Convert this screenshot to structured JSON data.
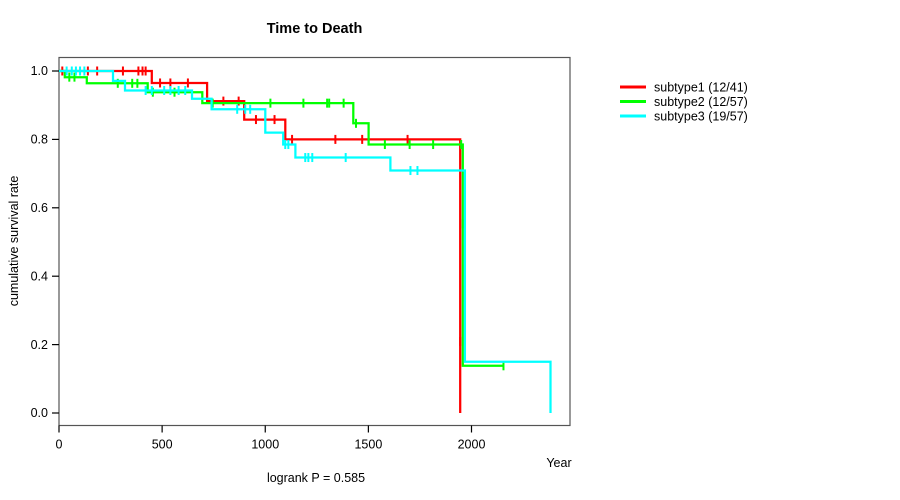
{
  "chart_data": {
    "type": "line",
    "subtype": "kaplan-meier-step-survival",
    "title": "Time to Death",
    "xlabel": "Year",
    "ylabel": "cumulative survival rate",
    "annotation": "logrank P = 0.585",
    "xlim": [
      0,
      2400
    ],
    "ylim": [
      0.0,
      1.0
    ],
    "grid": false,
    "legend_position": "right-outside",
    "xticks": [
      {
        "label": "0",
        "value": 0
      },
      {
        "label": "500",
        "value": 500
      },
      {
        "label": "1000",
        "value": 1000
      },
      {
        "label": "1500",
        "value": 1500
      },
      {
        "label": "2000",
        "value": 2000
      }
    ],
    "yticks": [
      {
        "label": "0.0",
        "value": 0.0
      },
      {
        "label": "0.2",
        "value": 0.2
      },
      {
        "label": "0.4",
        "value": 0.4
      },
      {
        "label": "0.6",
        "value": 0.6
      },
      {
        "label": "0.8",
        "value": 0.8
      },
      {
        "label": "1.0",
        "value": 1.0
      }
    ],
    "series": [
      {
        "name": "subtype1 (12/41)",
        "color": "#ff0000",
        "steps": [
          [
            0,
            1.0
          ],
          [
            450,
            0.965
          ],
          [
            718,
            0.912
          ],
          [
            898,
            0.858
          ],
          [
            1097,
            0.8
          ],
          [
            1945,
            0.0
          ]
        ],
        "end": 1945,
        "censors": [
          [
            16,
            1.0
          ],
          [
            140,
            1.0
          ],
          [
            185,
            1.0
          ],
          [
            310,
            1.0
          ],
          [
            385,
            1.0
          ],
          [
            405,
            1.0
          ],
          [
            420,
            1.0
          ],
          [
            490,
            0.965
          ],
          [
            540,
            0.965
          ],
          [
            625,
            0.965
          ],
          [
            797,
            0.912
          ],
          [
            871,
            0.912
          ],
          [
            955,
            0.858
          ],
          [
            1045,
            0.858
          ],
          [
            1130,
            0.8
          ],
          [
            1340,
            0.8
          ],
          [
            1470,
            0.8
          ],
          [
            1690,
            0.8
          ],
          [
            1945,
            0.209
          ]
        ]
      },
      {
        "name": "subtype2 (12/57)",
        "color": "#00ff00",
        "steps": [
          [
            0,
            1.0
          ],
          [
            28,
            0.982
          ],
          [
            135,
            0.964
          ],
          [
            430,
            0.938
          ],
          [
            695,
            0.906
          ],
          [
            1427,
            0.847
          ],
          [
            1501,
            0.785
          ],
          [
            1958,
            0.138
          ]
        ],
        "end": 2155,
        "censors": [
          [
            50,
            0.982
          ],
          [
            75,
            0.982
          ],
          [
            285,
            0.964
          ],
          [
            355,
            0.964
          ],
          [
            380,
            0.964
          ],
          [
            455,
            0.938
          ],
          [
            560,
            0.938
          ],
          [
            745,
            0.906
          ],
          [
            1025,
            0.906
          ],
          [
            1185,
            0.906
          ],
          [
            1300,
            0.906
          ],
          [
            1310,
            0.906
          ],
          [
            1380,
            0.906
          ],
          [
            1440,
            0.847
          ],
          [
            1580,
            0.785
          ],
          [
            1700,
            0.785
          ],
          [
            1814,
            0.785
          ],
          [
            1950,
            0.785
          ],
          [
            1958,
            0.553
          ],
          [
            2155,
            0.138
          ]
        ]
      },
      {
        "name": "subtype3 (19/57)",
        "color": "#00ffff",
        "steps": [
          [
            0,
            1.0
          ],
          [
            262,
            0.971
          ],
          [
            320,
            0.943
          ],
          [
            645,
            0.919
          ],
          [
            740,
            0.888
          ],
          [
            1000,
            0.82
          ],
          [
            1087,
            0.785
          ],
          [
            1146,
            0.747
          ],
          [
            1607,
            0.709
          ],
          [
            1968,
            0.15
          ],
          [
            2383,
            0.0
          ]
        ],
        "end": 2383,
        "censors": [
          [
            37,
            1.0
          ],
          [
            62,
            1.0
          ],
          [
            82,
            1.0
          ],
          [
            102,
            1.0
          ],
          [
            123,
            1.0
          ],
          [
            420,
            0.943
          ],
          [
            450,
            0.943
          ],
          [
            510,
            0.943
          ],
          [
            540,
            0.943
          ],
          [
            580,
            0.943
          ],
          [
            612,
            0.943
          ],
          [
            864,
            0.888
          ],
          [
            903,
            0.888
          ],
          [
            927,
            0.888
          ],
          [
            1097,
            0.785
          ],
          [
            1112,
            0.785
          ],
          [
            1194,
            0.747
          ],
          [
            1209,
            0.747
          ],
          [
            1228,
            0.747
          ],
          [
            1390,
            0.747
          ],
          [
            1704,
            0.709
          ],
          [
            1738,
            0.709
          ],
          [
            1968,
            0.503
          ],
          [
            1968,
            0.447
          ],
          [
            1968,
            0.385
          ],
          [
            1968,
            0.312
          ]
        ]
      }
    ]
  }
}
